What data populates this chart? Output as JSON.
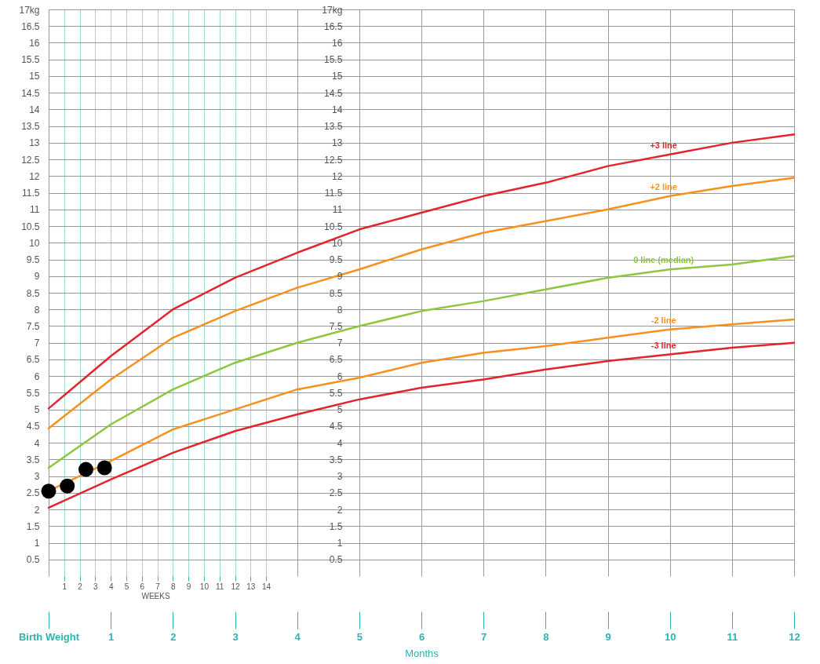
{
  "chart_data": {
    "type": "line",
    "xlabel": "Months",
    "x2label": "WEEKS",
    "xlim": [
      0,
      12
    ],
    "xticks": [
      {
        "value": 0,
        "label": "Birth Weight"
      },
      1,
      2,
      3,
      4,
      5,
      6,
      7,
      8,
      9,
      10,
      11,
      12
    ],
    "x2lim": [
      0,
      48
    ],
    "x2ticks": [
      1,
      2,
      3,
      4,
      5,
      6,
      7,
      8,
      9,
      10,
      11,
      12,
      13,
      14
    ],
    "ylim": [
      0,
      17
    ],
    "yticks": [
      0.5,
      1,
      1.5,
      2,
      2.5,
      3,
      3.5,
      4,
      4.5,
      5,
      5.5,
      6,
      6.5,
      7,
      7.5,
      8,
      8.5,
      9,
      9.5,
      10,
      10.5,
      11,
      11.5,
      12,
      12.5,
      13,
      13.5,
      14,
      14.5,
      15,
      15.5,
      16,
      16.5,
      {
        "value": 17,
        "label": "17kg"
      }
    ],
    "y2lim": [
      0,
      17
    ],
    "y2ticks": [
      0.5,
      1,
      1.5,
      2,
      2.5,
      3,
      3.5,
      4,
      4.5,
      5,
      5.5,
      6,
      6.5,
      7,
      7.5,
      8,
      8.5,
      9,
      9.5,
      10,
      10.5,
      11,
      11.5,
      12,
      12.5,
      13,
      13.5,
      14,
      14.5,
      15,
      15.5,
      16,
      16.5,
      {
        "value": 17,
        "label": "17kg"
      }
    ],
    "x": [
      0,
      1,
      2,
      3,
      4,
      5,
      6,
      7,
      8,
      9,
      10,
      11,
      12
    ],
    "grid": true,
    "line_style": "solid",
    "series": [
      {
        "name": "+3 line",
        "color": "#e3242b",
        "values": [
          5.03,
          6.6,
          8.0,
          8.95,
          9.7,
          10.4,
          10.9,
          11.4,
          11.8,
          12.3,
          12.65,
          13.0,
          13.25
        ]
      },
      {
        "name": "+2 line",
        "color": "#f7901e",
        "values": [
          4.43,
          5.9,
          7.15,
          7.95,
          8.65,
          9.2,
          9.8,
          10.3,
          10.65,
          11.0,
          11.4,
          11.7,
          11.95
        ]
      },
      {
        "name": "0 line (median)",
        "color": "#8dc63f",
        "values": [
          3.25,
          4.55,
          5.6,
          6.4,
          7.0,
          7.5,
          7.95,
          8.25,
          8.6,
          8.95,
          9.2,
          9.35,
          9.6
        ]
      },
      {
        "name": "-2 line",
        "color": "#f7901e",
        "values": [
          2.55,
          3.45,
          4.4,
          5.0,
          5.6,
          5.95,
          6.4,
          6.7,
          6.9,
          7.15,
          7.4,
          7.55,
          7.7
        ]
      },
      {
        "name": "-3 line",
        "color": "#e3242b",
        "values": [
          2.05,
          2.9,
          3.7,
          4.35,
          4.85,
          5.3,
          5.65,
          5.9,
          6.2,
          6.45,
          6.65,
          6.85,
          7.0
        ]
      },
      {
        "type": "scatter",
        "marker": "circle",
        "color": "#000000",
        "x": [
          0,
          0.3,
          0.6,
          0.9
        ],
        "values": [
          2.55,
          2.7,
          3.2,
          3.25
        ]
      }
    ]
  }
}
